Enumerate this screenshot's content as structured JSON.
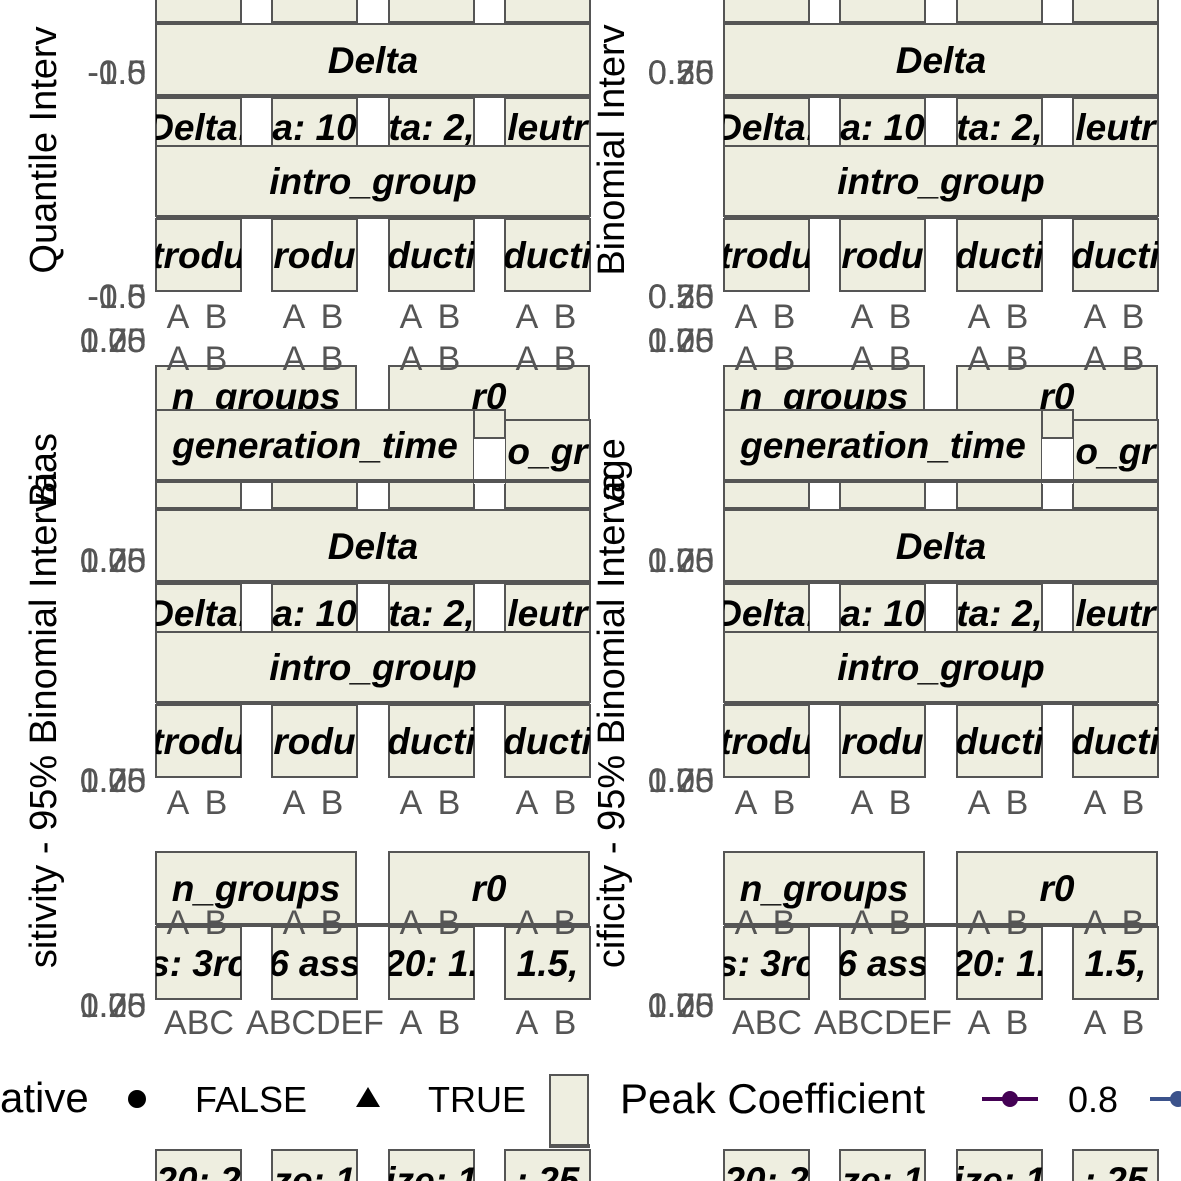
{
  "chart_data": {
    "type": "scatter",
    "panels": [
      {
        "ylabel_fragments": [
          "Quantile Interv",
          "Bias",
          "sitivity - 95% Binomial Interva"
        ],
        "ytick_labels_top": [
          "-0.5",
          "-1.0",
          "-1.5"
        ],
        "ytick_labels_mid": [
          "-0.5",
          "-1.0",
          "-1.5"
        ],
        "ytick_labels_low": [
          "1.00",
          "0.25",
          "0.75"
        ]
      },
      {
        "ylabel_fragments": [
          "Binomial Interv",
          "age",
          "cificity - 95% Binomial Interva"
        ],
        "ytick_labels_top": [
          "0.25",
          "0.50",
          "0.75"
        ],
        "ytick_labels_mid": [
          "0.25",
          "0.50",
          "0.75"
        ],
        "ytick_labels_low": [
          "1.00",
          "0.25",
          "0.75"
        ]
      }
    ],
    "strip_labels": {
      "delta": "Delta",
      "delta_levels": [
        "Delta:",
        "a: 10",
        "ta: 2,",
        "leutr"
      ],
      "intro_group": "intro_group",
      "intro_levels": [
        "trodu",
        "rodu",
        "ducti",
        "ducti"
      ],
      "n_groups": "n_groups",
      "r0": "r0",
      "generation_time": "generation_time",
      "o_gr": "o_gr",
      "n_groups_levels": [
        "s: 3rc",
        "6 ass",
        "20: 1.",
        "1.5,"
      ],
      "bottom_levels": [
        "20: 2",
        "ze: 1",
        "ize: 1",
        ": 25"
      ]
    },
    "x_tick_labels": {
      "ab": [
        "A",
        "B"
      ],
      "abc": [
        "A",
        "B",
        "C"
      ],
      "abcdef": [
        "A",
        "B",
        "C",
        "D",
        "E",
        "F"
      ]
    },
    "legend": {
      "shape_title_fragment": "ative",
      "shape_entries": [
        "FALSE",
        "TRUE"
      ],
      "color_title": "Peak Coefficient",
      "color_entries": [
        "0.8"
      ],
      "colors": {
        "c08": "#440154",
        "c_next": "#3b528b"
      }
    }
  }
}
